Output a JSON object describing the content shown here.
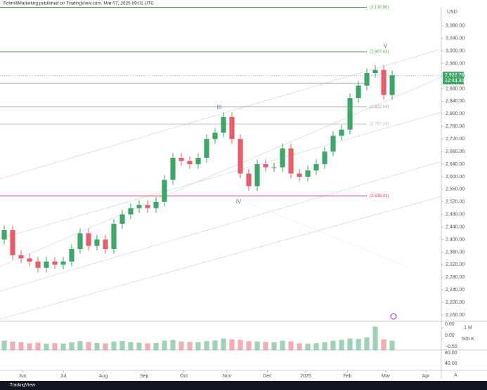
{
  "header": "TickmillMarketing published on TradingView.com, Mar 07, 2025 09:01 UTC",
  "footer": "TradingView",
  "chart_data": {
    "type": "candlestick",
    "currency": "USD",
    "up_color": "#3fa66a",
    "down_color": "#e85d6a",
    "open": [
      2400,
      2430,
      2350,
      2340,
      2330,
      2310,
      2330,
      2320,
      2330,
      2370,
      2420,
      2380,
      2400,
      2370,
      2450,
      2480,
      2500,
      2510,
      2500,
      2520,
      2590,
      2660,
      2650,
      2640,
      2660,
      2720,
      2740,
      2790,
      2720,
      2610,
      2570,
      2640,
      2630,
      2630,
      2690,
      2610,
      2600,
      2620,
      2640,
      2680,
      2730,
      2750,
      2850,
      2890,
      2930,
      2940,
      2860
    ],
    "high": [
      2445,
      2445,
      2365,
      2355,
      2345,
      2345,
      2345,
      2345,
      2385,
      2435,
      2435,
      2415,
      2415,
      2465,
      2495,
      2515,
      2525,
      2525,
      2535,
      2605,
      2675,
      2675,
      2665,
      2675,
      2735,
      2755,
      2805,
      2805,
      2735,
      2625,
      2655,
      2655,
      2645,
      2705,
      2705,
      2625,
      2635,
      2655,
      2695,
      2745,
      2765,
      2865,
      2905,
      2945,
      2955,
      2955,
      2938
    ],
    "low": [
      2385,
      2335,
      2325,
      2315,
      2295,
      2295,
      2305,
      2305,
      2315,
      2355,
      2365,
      2365,
      2355,
      2355,
      2435,
      2465,
      2485,
      2485,
      2485,
      2505,
      2575,
      2635,
      2625,
      2625,
      2645,
      2705,
      2725,
      2705,
      2595,
      2555,
      2555,
      2615,
      2615,
      2615,
      2595,
      2585,
      2585,
      2605,
      2625,
      2665,
      2715,
      2735,
      2835,
      2875,
      2915,
      2845,
      2845
    ],
    "close": [
      2430,
      2350,
      2340,
      2330,
      2310,
      2330,
      2320,
      2330,
      2370,
      2420,
      2380,
      2400,
      2370,
      2450,
      2480,
      2500,
      2510,
      2500,
      2520,
      2590,
      2660,
      2650,
      2640,
      2660,
      2720,
      2740,
      2790,
      2720,
      2610,
      2570,
      2640,
      2630,
      2630,
      2690,
      2610,
      2600,
      2620,
      2640,
      2680,
      2730,
      2750,
      2850,
      2890,
      2930,
      2940,
      2860,
      2922.76
    ],
    "volume": [
      420000,
      380000,
      350000,
      300000,
      330000,
      280000,
      310000,
      290000,
      340000,
      400000,
      360000,
      320000,
      300000,
      380000,
      410000,
      350000,
      330000,
      300000,
      320000,
      420000,
      450000,
      380000,
      360000,
      350000,
      400000,
      430000,
      520000,
      480000,
      460000,
      400000,
      380000,
      360000,
      340000,
      420000,
      390000,
      300000,
      280000,
      310000,
      350000,
      420000,
      460000,
      520000,
      500000,
      560000,
      1050000,
      480000,
      420000
    ],
    "last_price": {
      "value": 2922.76,
      "label": "2,922.76",
      "countdown": "12:43:30"
    },
    "xlim": [
      -0.5,
      51.83
    ],
    "xticks": [
      {
        "value": 2.17,
        "label": "Jun"
      },
      {
        "value": 7,
        "label": "Jul"
      },
      {
        "value": 11.75,
        "label": "Aug"
      },
      {
        "value": 16.6,
        "label": "Sep"
      },
      {
        "value": 21.3,
        "label": "Oct"
      },
      {
        "value": 26.4,
        "label": "Nov"
      },
      {
        "value": 31.2,
        "label": "Dec"
      },
      {
        "value": 35.75,
        "label": "2025"
      },
      {
        "value": 40.7,
        "label": "Feb"
      },
      {
        "value": 45.25,
        "label": "Mar"
      },
      {
        "value": 50,
        "label": "Apr"
      }
    ],
    "ylim": [
      2140,
      3140
    ],
    "yticks": [
      {
        "value": 2160,
        "label": "2,160.00"
      },
      {
        "value": 2200,
        "label": "2,200.00"
      },
      {
        "value": 2240,
        "label": "2,240.00"
      },
      {
        "value": 2280,
        "label": "2,280.00"
      },
      {
        "value": 2320,
        "label": "2,320.00"
      },
      {
        "value": 2360,
        "label": "2,360.00"
      },
      {
        "value": 2400,
        "label": "2,400.00"
      },
      {
        "value": 2440,
        "label": "2,440.00"
      },
      {
        "value": 2480,
        "label": "2,480.00"
      },
      {
        "value": 2520,
        "label": "2,520.00"
      },
      {
        "value": 2560,
        "label": "2,560.00"
      },
      {
        "value": 2600,
        "label": "2,600.00"
      },
      {
        "value": 2640,
        "label": "2,640.00"
      },
      {
        "value": 2680,
        "label": "2,680.00"
      },
      {
        "value": 2720,
        "label": "2,720.00"
      },
      {
        "value": 2760,
        "label": "2,760.00"
      },
      {
        "value": 2800,
        "label": "2,800.00"
      },
      {
        "value": 2840,
        "label": "2,840.00"
      },
      {
        "value": 2880,
        "label": "2,880.00"
      },
      {
        "value": 2920,
        "label": "2,920.00"
      },
      {
        "value": 2960,
        "label": "2,960.00"
      },
      {
        "value": 3000,
        "label": "3,000.00"
      },
      {
        "value": 3040,
        "label": "3,040.00"
      },
      {
        "value": 3080,
        "label": "3,080.00"
      }
    ],
    "levels": [
      {
        "value": 3138.86,
        "label": "(3,138.86)",
        "color": "#4caf50"
      },
      {
        "value": 2997.43,
        "label": "(2,997.43)",
        "color": "#4caf50"
      },
      {
        "value": 2897,
        "label": null,
        "color": "#9e9e9e"
      },
      {
        "value": 2822.44,
        "label": "(2,822.44)",
        "color": "#9e9e9e"
      },
      {
        "value": 2767.19,
        "label": "(2,767.19)",
        "color": "#bdbdbd"
      },
      {
        "value": 2539.03,
        "label": "(2,539.03)",
        "color": "#e53950"
      }
    ],
    "annotations": [
      {
        "text": "III",
        "index": 25.5,
        "value": 2820
      },
      {
        "text": "IV",
        "index": 27.8,
        "value": 2520
      },
      {
        "text": "V",
        "index": 45.2,
        "value": 3015
      }
    ],
    "volume_ylim": [
      0,
      1200000
    ],
    "volume_yticks": [
      {
        "value": 1000000,
        "label": "1 M"
      },
      {
        "value": 500000,
        "label": "500 K"
      }
    ],
    "indicator_labels": [
      "0.00",
      "0.00",
      "−0.50",
      "80.00",
      "40.00"
    ]
  }
}
